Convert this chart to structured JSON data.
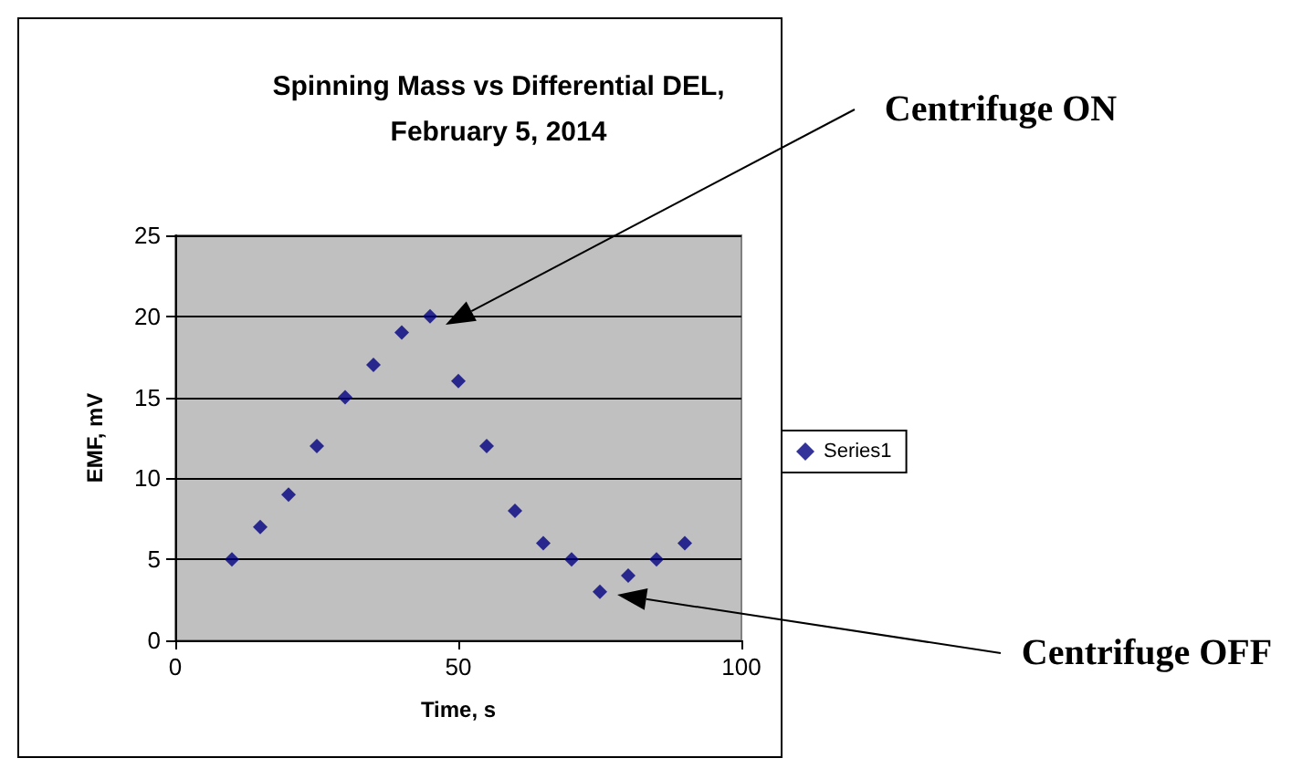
{
  "chart_data": {
    "type": "scatter",
    "title": "Spinning Mass vs Differential DEL,\nFebruary 5, 2014",
    "xlabel": "Time, s",
    "ylabel": "EMF, mV",
    "x": [
      10,
      15,
      20,
      25,
      30,
      35,
      40,
      45,
      50,
      55,
      60,
      65,
      70,
      75,
      80,
      85,
      90
    ],
    "series": [
      {
        "name": "Series1",
        "color": "#000080",
        "values": [
          5,
          7,
          9,
          12,
          15,
          17,
          19,
          20,
          16,
          12,
          8,
          6,
          5,
          3,
          4,
          5,
          6
        ]
      }
    ],
    "xlim": [
      0,
      100
    ],
    "xticks": [
      0,
      50,
      100
    ],
    "ylim": [
      0,
      25
    ],
    "yticks": [
      0,
      5,
      10,
      15,
      20,
      25
    ],
    "grid": "y",
    "legend": "right",
    "marker": "diamond",
    "annotations": [
      "Centrifuge ON",
      "Centrifuge OFF"
    ]
  }
}
